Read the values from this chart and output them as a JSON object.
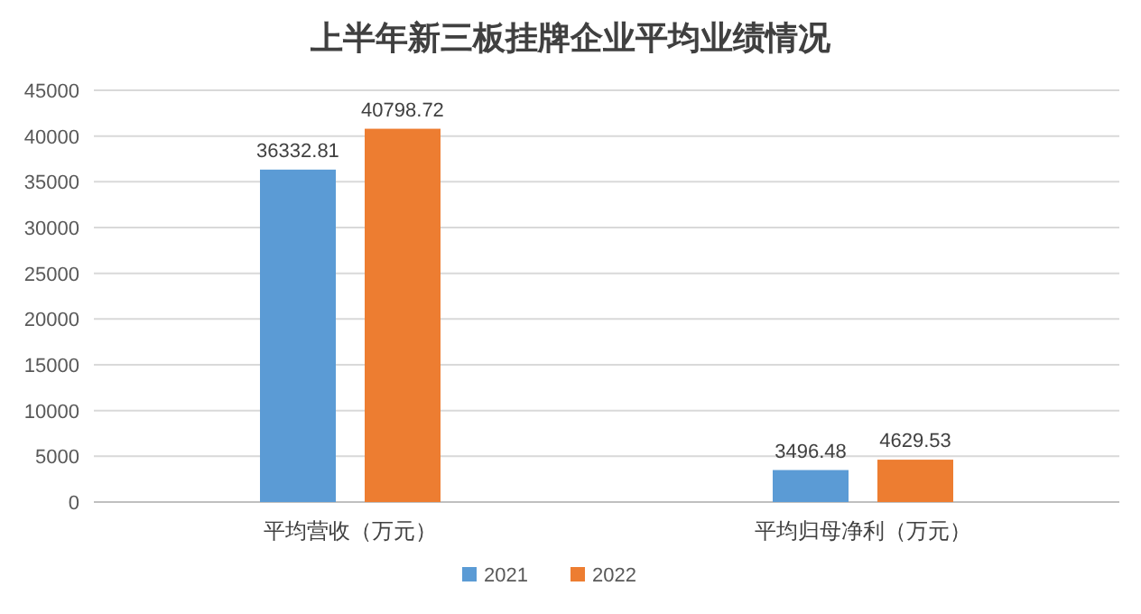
{
  "chart_data": {
    "type": "bar",
    "title": "上半年新三板挂牌企业平均业绩情况",
    "categories": [
      "平均营收（万元）",
      "平均归母净利（万元）"
    ],
    "series": [
      {
        "name": "2021",
        "color": "#5b9bd5",
        "values": [
          36332.81,
          3496.48
        ]
      },
      {
        "name": "2022",
        "color": "#ed7d31",
        "values": [
          40798.72,
          4629.53
        ]
      }
    ],
    "ylim": [
      0,
      45000
    ],
    "yticks": [
      0,
      5000,
      10000,
      15000,
      20000,
      25000,
      30000,
      35000,
      40000,
      45000
    ],
    "grid": "y",
    "legend": "bottom",
    "data_labels": true
  }
}
